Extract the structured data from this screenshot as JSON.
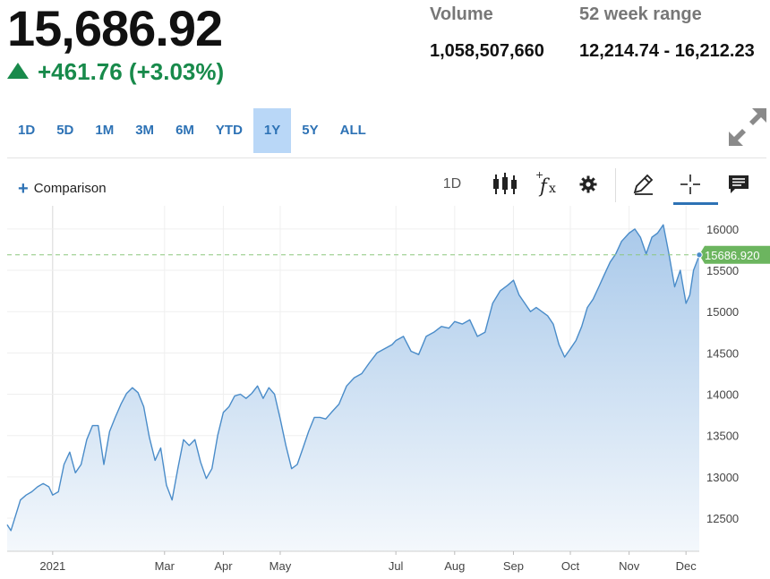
{
  "quote": {
    "price": "15,686.92",
    "change": "+461.76 (+3.03%)",
    "volume_label": "Volume",
    "volume_value": "1,058,507,660",
    "range_label": "52 week range",
    "range_value": "12,214.74 - 16,212.23"
  },
  "ranges": [
    "1D",
    "5D",
    "1M",
    "3M",
    "6M",
    "YTD",
    "1Y",
    "5Y",
    "ALL"
  ],
  "active_range": "1Y",
  "toolbar": {
    "comparison_label": "Comparison",
    "interval_label": "1D",
    "icons": [
      "candlestick-icon",
      "function-fx-icon",
      "gear-icon",
      "pencil-icon",
      "crosshair-icon",
      "comment-icon"
    ]
  },
  "colors": {
    "line": "#4a8cc9",
    "area_top": "#a9c9ea",
    "area_bottom": "#f4f8fc",
    "current_label_bg": "#6cb55f",
    "positive": "#188a4b"
  },
  "chart_data": {
    "type": "area",
    "ylim": [
      12100,
      16280
    ],
    "y_ticks": [
      12500,
      13000,
      13500,
      14000,
      14500,
      15000,
      15500,
      16000
    ],
    "x_ticks": [
      {
        "label": "2021",
        "date": "2021-01-01"
      },
      {
        "label": "Mar",
        "date": "2021-03-01"
      },
      {
        "label": "Apr",
        "date": "2021-04-01"
      },
      {
        "label": "May",
        "date": "2021-05-01"
      },
      {
        "label": "Jul",
        "date": "2021-07-01"
      },
      {
        "label": "Aug",
        "date": "2021-08-01"
      },
      {
        "label": "Sep",
        "date": "2021-09-01"
      },
      {
        "label": "Oct",
        "date": "2021-10-01"
      },
      {
        "label": "Nov",
        "date": "2021-11-01"
      },
      {
        "label": "Dec",
        "date": "2021-12-01"
      }
    ],
    "current_value": 15686.92,
    "current_label": "15686.920",
    "series": [
      {
        "x": [
          "2020-12-08",
          "2020-12-10",
          "2020-12-12",
          "2020-12-15",
          "2020-12-18",
          "2020-12-21",
          "2020-12-24",
          "2020-12-27",
          "2020-12-30",
          "2021-01-01",
          "2021-01-04",
          "2021-01-07",
          "2021-01-10",
          "2021-01-13",
          "2021-01-16",
          "2021-01-19",
          "2021-01-22",
          "2021-01-25",
          "2021-01-28",
          "2021-01-31",
          "2021-02-03",
          "2021-02-06",
          "2021-02-09",
          "2021-02-12",
          "2021-02-15",
          "2021-02-18",
          "2021-02-21",
          "2021-02-24",
          "2021-02-27",
          "2021-03-02",
          "2021-03-05",
          "2021-03-08",
          "2021-03-11",
          "2021-03-14",
          "2021-03-17",
          "2021-03-20",
          "2021-03-23",
          "2021-03-26",
          "2021-03-29",
          "2021-04-01",
          "2021-04-04",
          "2021-04-07",
          "2021-04-10",
          "2021-04-13",
          "2021-04-16",
          "2021-04-19",
          "2021-04-22",
          "2021-04-25",
          "2021-04-28",
          "2021-05-01",
          "2021-05-04",
          "2021-05-07",
          "2021-05-10",
          "2021-05-13",
          "2021-05-16",
          "2021-05-19",
          "2021-05-22",
          "2021-05-25",
          "2021-05-28",
          "2021-06-01",
          "2021-06-05",
          "2021-06-09",
          "2021-06-13",
          "2021-06-17",
          "2021-06-21",
          "2021-06-25",
          "2021-06-29",
          "2021-07-01",
          "2021-07-05",
          "2021-07-09",
          "2021-07-13",
          "2021-07-17",
          "2021-07-21",
          "2021-07-25",
          "2021-07-29",
          "2021-08-01",
          "2021-08-05",
          "2021-08-09",
          "2021-08-13",
          "2021-08-17",
          "2021-08-21",
          "2021-08-25",
          "2021-08-29",
          "2021-09-01",
          "2021-09-04",
          "2021-09-07",
          "2021-09-10",
          "2021-09-13",
          "2021-09-16",
          "2021-09-19",
          "2021-09-22",
          "2021-09-25",
          "2021-09-28",
          "2021-10-01",
          "2021-10-04",
          "2021-10-07",
          "2021-10-10",
          "2021-10-13",
          "2021-10-16",
          "2021-10-19",
          "2021-10-22",
          "2021-10-25",
          "2021-10-28",
          "2021-11-01",
          "2021-11-04",
          "2021-11-07",
          "2021-11-10",
          "2021-11-13",
          "2021-11-16",
          "2021-11-19",
          "2021-11-22",
          "2021-11-25",
          "2021-11-28",
          "2021-12-01",
          "2021-12-03",
          "2021-12-05",
          "2021-12-07",
          "2021-12-08"
        ],
        "values": [
          12420,
          12350,
          12500,
          12720,
          12780,
          12820,
          12880,
          12920,
          12880,
          12780,
          12820,
          13150,
          13300,
          13050,
          13150,
          13450,
          13620,
          13620,
          13150,
          13550,
          13720,
          13880,
          14010,
          14080,
          14020,
          13850,
          13480,
          13200,
          13350,
          12900,
          12720,
          13100,
          13450,
          13380,
          13450,
          13180,
          12980,
          13100,
          13500,
          13780,
          13850,
          13980,
          14000,
          13950,
          14010,
          14100,
          13950,
          14080,
          14000,
          13700,
          13380,
          13100,
          13150,
          13350,
          13550,
          13720,
          13720,
          13700,
          13780,
          13880,
          14100,
          14200,
          14250,
          14380,
          14500,
          14550,
          14600,
          14650,
          14700,
          14520,
          14480,
          14700,
          14750,
          14820,
          14800,
          14880,
          14850,
          14900,
          14700,
          14750,
          15100,
          15250,
          15320,
          15380,
          15200,
          15100,
          15000,
          15050,
          15000,
          14950,
          14850,
          14600,
          14450,
          14550,
          14650,
          14820,
          15050,
          15150,
          15300,
          15450,
          15600,
          15700,
          15850,
          15950,
          16000,
          15900,
          15700,
          15900,
          15950,
          16050,
          15700,
          15300,
          15500,
          15100,
          15200,
          15500,
          15620,
          15686.92
        ]
      }
    ]
  }
}
